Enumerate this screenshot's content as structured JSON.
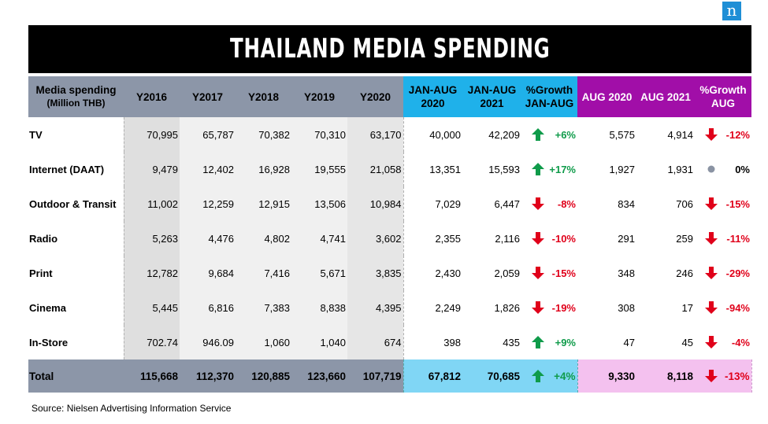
{
  "logo": "n",
  "title": "THAILAND MEDIA SPENDING",
  "header": {
    "label_line1": "Media spending",
    "label_line2": "(Million THB)",
    "years": [
      "Y2016",
      "Y2017",
      "Y2018",
      "Y2019",
      "Y2020"
    ],
    "janaug2020_l1": "JAN-AUG",
    "janaug2020_l2": "2020",
    "janaug2021_l1": "JAN-AUG",
    "janaug2021_l2": "2021",
    "growth_janaug_l1": "%Growth",
    "growth_janaug_l2": "JAN-AUG",
    "aug2020": "AUG 2020",
    "aug2021": "AUG 2021",
    "growth_aug_l1": "%Growth",
    "growth_aug_l2": "AUG"
  },
  "colors": {
    "up": "#0f9b4a",
    "down": "#e0001a",
    "flat": "#8a93a3"
  },
  "rows": [
    {
      "label": "TV",
      "y": [
        "70,995",
        "65,787",
        "70,382",
        "70,310",
        "63,170"
      ],
      "ja20": "40,000",
      "ja21": "42,209",
      "gja": "+6%",
      "gja_dir": "up",
      "a20": "5,575",
      "a21": "4,914",
      "ga": "-12%",
      "ga_dir": "down"
    },
    {
      "label": "Internet (DAAT)",
      "y": [
        "9,479",
        "12,402",
        "16,928",
        "19,555",
        "21,058"
      ],
      "ja20": "13,351",
      "ja21": "15,593",
      "gja": "+17%",
      "gja_dir": "up",
      "a20": "1,927",
      "a21": "1,931",
      "ga": "0%",
      "ga_dir": "flat"
    },
    {
      "label": "Outdoor & Transit",
      "y": [
        "11,002",
        "12,259",
        "12,915",
        "13,506",
        "10,984"
      ],
      "ja20": "7,029",
      "ja21": "6,447",
      "gja": "-8%",
      "gja_dir": "down",
      "a20": "834",
      "a21": "706",
      "ga": "-15%",
      "ga_dir": "down"
    },
    {
      "label": "Radio",
      "y": [
        "5,263",
        "4,476",
        "4,802",
        "4,741",
        "3,602"
      ],
      "ja20": "2,355",
      "ja21": "2,116",
      "gja": "-10%",
      "gja_dir": "down",
      "a20": "291",
      "a21": "259",
      "ga": "-11%",
      "ga_dir": "down"
    },
    {
      "label": "Print",
      "y": [
        "12,782",
        "9,684",
        "7,416",
        "5,671",
        "3,835"
      ],
      "ja20": "2,430",
      "ja21": "2,059",
      "gja": "-15%",
      "gja_dir": "down",
      "a20": "348",
      "a21": "246",
      "ga": "-29%",
      "ga_dir": "down"
    },
    {
      "label": "Cinema",
      "y": [
        "5,445",
        "6,816",
        "7,383",
        "8,838",
        "4,395"
      ],
      "ja20": "2,249",
      "ja21": "1,826",
      "gja": "-19%",
      "gja_dir": "down",
      "a20": "308",
      "a21": "17",
      "ga": "-94%",
      "ga_dir": "down"
    },
    {
      "label": "In-Store",
      "y": [
        "702.74",
        "946.09",
        "1,060",
        "1,040",
        "674"
      ],
      "ja20": "398",
      "ja21": "435",
      "gja": "+9%",
      "gja_dir": "up",
      "a20": "47",
      "a21": "45",
      "ga": "-4%",
      "ga_dir": "down"
    }
  ],
  "total": {
    "label": "Total",
    "y": [
      "115,668",
      "112,370",
      "120,885",
      "123,660",
      "107,719"
    ],
    "ja20": "67,812",
    "ja21": "70,685",
    "gja": "+4%",
    "gja_dir": "up",
    "a20": "9,330",
    "a21": "8,118",
    "ga": "-13%",
    "ga_dir": "down"
  },
  "source": "Source: Nielsen Advertising Information Service"
}
